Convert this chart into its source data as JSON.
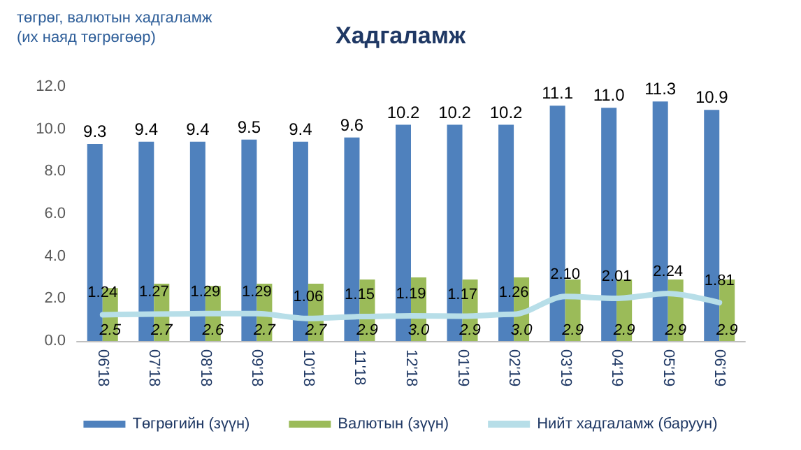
{
  "chart_data": {
    "type": "bar",
    "title": "Хадгаламж",
    "ylabel": "төгрөг, валютын хадгаламж\n(их наяд төгрөгөөр)",
    "categories": [
      "06'18",
      "07'18",
      "08'18",
      "09'18",
      "10'18",
      "11'18",
      "12'18",
      "01'19",
      "02'19",
      "03'19",
      "04'19",
      "05'19",
      "06'19"
    ],
    "series": [
      {
        "name": "Төгрөгийн (зүүн)",
        "color": "#4f81bd",
        "values": [
          9.3,
          9.4,
          9.4,
          9.5,
          9.4,
          9.6,
          10.2,
          10.2,
          10.2,
          11.1,
          11.0,
          11.3,
          10.9
        ],
        "value_labels": [
          "9.3",
          "9.4",
          "9.4",
          "9.5",
          "9.4",
          "9.6",
          "10.2",
          "10.2",
          "10.2",
          "11.1",
          "11.0",
          "11.3",
          "10.9"
        ]
      },
      {
        "name": "Валютын (зүүн)",
        "color": "#9bbb59",
        "values": [
          2.5,
          2.7,
          2.6,
          2.7,
          2.7,
          2.9,
          3.0,
          2.9,
          3.0,
          2.9,
          2.9,
          2.9,
          2.9
        ],
        "value_labels": [
          "2.5",
          "2.7",
          "2.6",
          "2.7",
          "2.7",
          "2.9",
          "3.0",
          "2.9",
          "3.0",
          "2.9",
          "2.9",
          "2.9",
          "2.9"
        ]
      },
      {
        "name": "Нийт хадгаламж (баруун)",
        "type": "line",
        "color": "#b7dee8",
        "values": [
          1.24,
          1.27,
          1.29,
          1.29,
          1.06,
          1.15,
          1.19,
          1.17,
          1.26,
          2.1,
          2.01,
          2.24,
          1.81
        ],
        "value_labels": [
          "1.24",
          "1.27",
          "1.29",
          "1.29",
          "1.06",
          "1.15",
          "1.19",
          "1.17",
          "1.26",
          "2.10",
          "2.01",
          "2.24",
          "1.81"
        ]
      }
    ],
    "ylim": [
      0,
      12
    ],
    "yticks": [
      {
        "value": 0,
        "label": "0.0"
      },
      {
        "value": 2,
        "label": "2.0"
      },
      {
        "value": 4,
        "label": "4.0"
      },
      {
        "value": 6,
        "label": "6.0"
      },
      {
        "value": 8,
        "label": "8.0"
      },
      {
        "value": 10,
        "label": "10.0"
      },
      {
        "value": 12,
        "label": "12.0"
      }
    ],
    "grid": false,
    "legend": "bottom",
    "marker": "none"
  }
}
